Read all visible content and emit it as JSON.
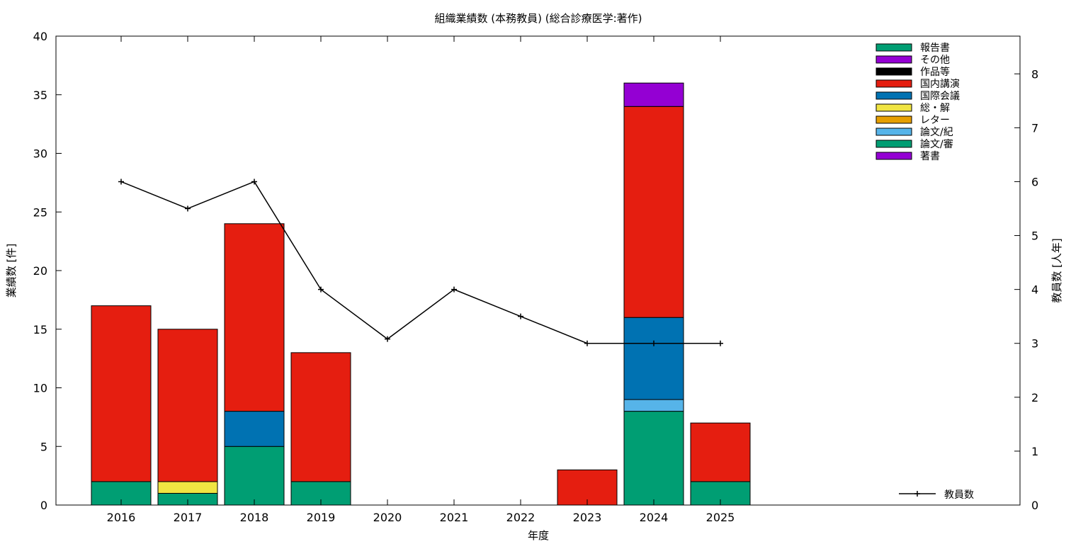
{
  "chart_data": {
    "type": "bar",
    "title": "組織業績数 (本務教員) (総合診療医学:著作)",
    "xlabel": "年度",
    "ylabel": "業績数 [件]",
    "y2label": "教員数 [人年]",
    "categories": [
      "2016",
      "2017",
      "2018",
      "2019",
      "2020",
      "2021",
      "2022",
      "2023",
      "2024",
      "2025"
    ],
    "ylim": [
      0,
      40
    ],
    "yticks": [
      0,
      5,
      10,
      15,
      20,
      25,
      30,
      35,
      40
    ],
    "y2lim": [
      0,
      8.7
    ],
    "y2ticks": [
      0,
      1,
      2,
      3,
      4,
      5,
      6,
      7,
      8
    ],
    "stacked": true,
    "legend_position": "top-right",
    "series": [
      {
        "name": "著書",
        "color": "#9400d3",
        "values": [
          0,
          0,
          0,
          0,
          0,
          0,
          0,
          0,
          0,
          0
        ]
      },
      {
        "name": "論文/審",
        "color": "#009e73",
        "values": [
          2,
          1,
          5,
          2,
          0,
          0,
          0,
          0,
          8,
          2
        ]
      },
      {
        "name": "論文/紀",
        "color": "#56b4e9",
        "values": [
          0,
          0,
          0,
          0,
          0,
          0,
          0,
          0,
          1,
          0
        ]
      },
      {
        "name": "レター",
        "color": "#e69f00",
        "values": [
          0,
          0,
          0,
          0,
          0,
          0,
          0,
          0,
          0,
          0
        ]
      },
      {
        "name": "総・解",
        "color": "#f0e442",
        "values": [
          0,
          1,
          0,
          0,
          0,
          0,
          0,
          0,
          0,
          0
        ]
      },
      {
        "name": "国際会議",
        "color": "#0072b2",
        "values": [
          0,
          0,
          3,
          0,
          0,
          0,
          0,
          0,
          7,
          0
        ]
      },
      {
        "name": "国内講演",
        "color": "#e51e10",
        "values": [
          15,
          13,
          16,
          11,
          0,
          0,
          0,
          3,
          18,
          5
        ]
      },
      {
        "name": "作品等",
        "color": "#000000",
        "values": [
          0,
          0,
          0,
          0,
          0,
          0,
          0,
          0,
          0,
          0
        ]
      },
      {
        "name": "その他",
        "color": "#9400d3",
        "values": [
          0,
          0,
          0,
          0,
          0,
          0,
          0,
          0,
          2,
          0
        ]
      },
      {
        "name": "報告書",
        "color": "#009e73",
        "values": [
          0,
          0,
          0,
          0,
          0,
          0,
          0,
          0,
          0,
          0
        ]
      }
    ],
    "legend_order": [
      "報告書",
      "その他",
      "作品等",
      "国内講演",
      "国際会議",
      "総・解",
      "レター",
      "論文/紀",
      "論文/審",
      "著書"
    ],
    "line": {
      "name": "教員数",
      "color": "#000000",
      "axis": "y2",
      "values": [
        6,
        5.5,
        6,
        4,
        3.08,
        4,
        3.5,
        3,
        3,
        3
      ]
    }
  }
}
